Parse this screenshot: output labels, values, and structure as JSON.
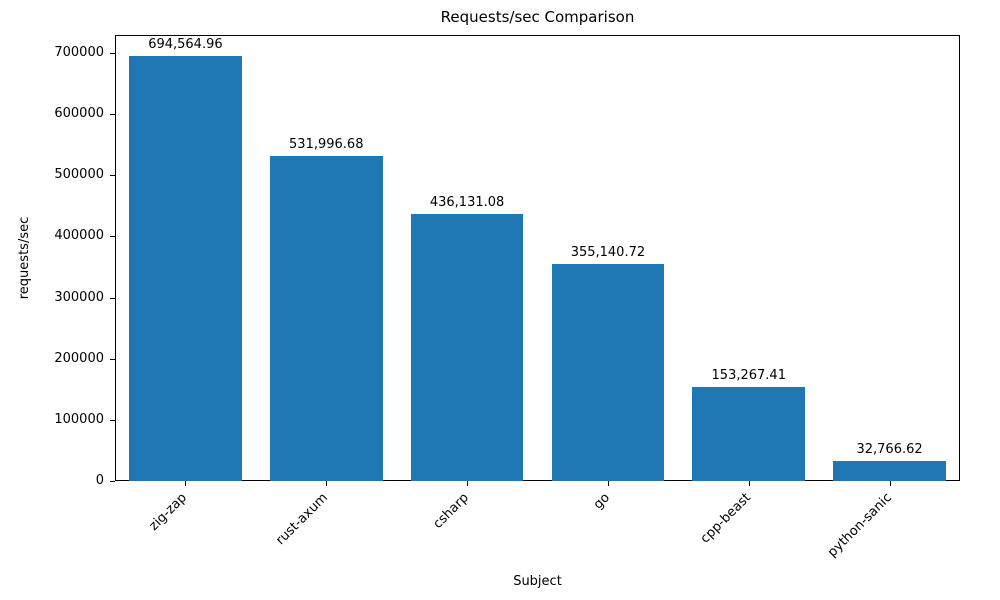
{
  "chart_data": {
    "type": "bar",
    "title": "Requests/sec Comparison",
    "xlabel": "Subject",
    "ylabel": "requests/sec",
    "categories": [
      "zig-zap",
      "rust-axum",
      "csharp",
      "go",
      "cpp-beast",
      "python-sanic"
    ],
    "values": [
      694564.96,
      531996.68,
      436131.08,
      355140.72,
      153267.41,
      32766.62
    ],
    "value_labels": [
      "694,564.96",
      "531,996.68",
      "436,131.08",
      "355,140.72",
      "153,267.41",
      "32,766.62"
    ],
    "bar_color": "#1f77b4",
    "ylim": [
      0,
      729293
    ],
    "yticks": [
      0,
      100000,
      200000,
      300000,
      400000,
      500000,
      600000,
      700000
    ],
    "grid": false,
    "legend_position": "none"
  }
}
